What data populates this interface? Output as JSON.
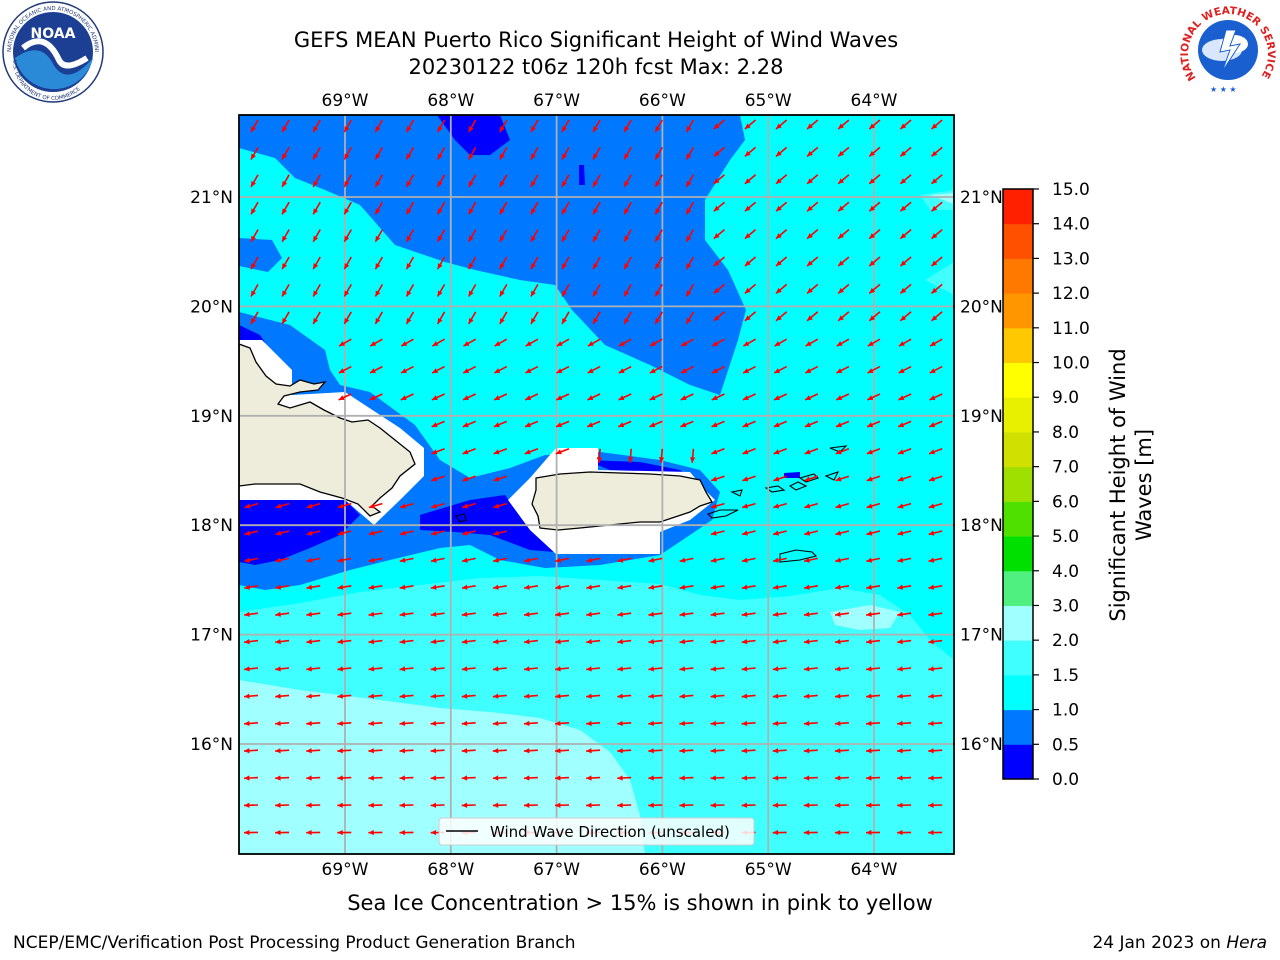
{
  "title": {
    "line1": "GEFS MEAN Puerto Rico Significant Height of Wind Waves",
    "line2": "20230122 t06z 120h fcst   Max: 2.28"
  },
  "map": {
    "lon_ticks_top": [
      "69°W",
      "68°W",
      "67°W",
      "66°W",
      "65°W",
      "64°W"
    ],
    "lon_ticks_bottom": [
      "69°W",
      "68°W",
      "67°W",
      "66°W",
      "65°W",
      "64°W"
    ],
    "lat_ticks_left": [
      "21°N",
      "20°N",
      "19°N",
      "18°N",
      "17°N",
      "16°N"
    ],
    "lat_ticks_right": [
      "21°N",
      "20°N",
      "19°N",
      "18°N",
      "17°N",
      "16°N"
    ],
    "legend_label": "Wind Wave Direction (unscaled)",
    "lon_values": [
      -69,
      -68,
      -67,
      -66,
      -65,
      -64
    ],
    "lat_values": [
      21,
      20,
      19,
      18,
      17,
      16
    ],
    "arrow_color": "#ff0000",
    "land_color": "#eeeddc",
    "grid": true
  },
  "colorbar": {
    "label": "Significant Height of Wind Waves [m]",
    "tick_labels": [
      "0.0",
      "0.5",
      "1.0",
      "1.5",
      "2.0",
      "3.0",
      "4.0",
      "5.0",
      "6.0",
      "7.0",
      "8.0",
      "9.0",
      "10.0",
      "11.0",
      "12.0",
      "13.0",
      "14.0",
      "15.0"
    ],
    "colors": [
      "#0000ff",
      "#0078ff",
      "#00ffff",
      "#40ffff",
      "#a0ffff",
      "#50f080",
      "#00e000",
      "#50e000",
      "#a0e000",
      "#d0e000",
      "#e8f000",
      "#ffff00",
      "#ffc800",
      "#ff9600",
      "#ff7800",
      "#ff5000",
      "#ff2000"
    ]
  },
  "note": "Sea Ice Concentration > 15% is shown in pink to yellow",
  "footer": {
    "left": "NCEP/EMC/Verification Post Processing Product Generation Branch",
    "right_prefix": "24 Jan 2023 on ",
    "right_host": "Hera"
  },
  "logos": {
    "noaa_text": "NOAA",
    "noaa_ring_top": "NATIONAL OCEANIC AND ATMOSPHERIC ADMINISTRATION",
    "noaa_ring_bottom": "U.S. DEPARTMENT OF COMMERCE",
    "nws_ring": "NATIONAL WEATHER SERVICE"
  }
}
